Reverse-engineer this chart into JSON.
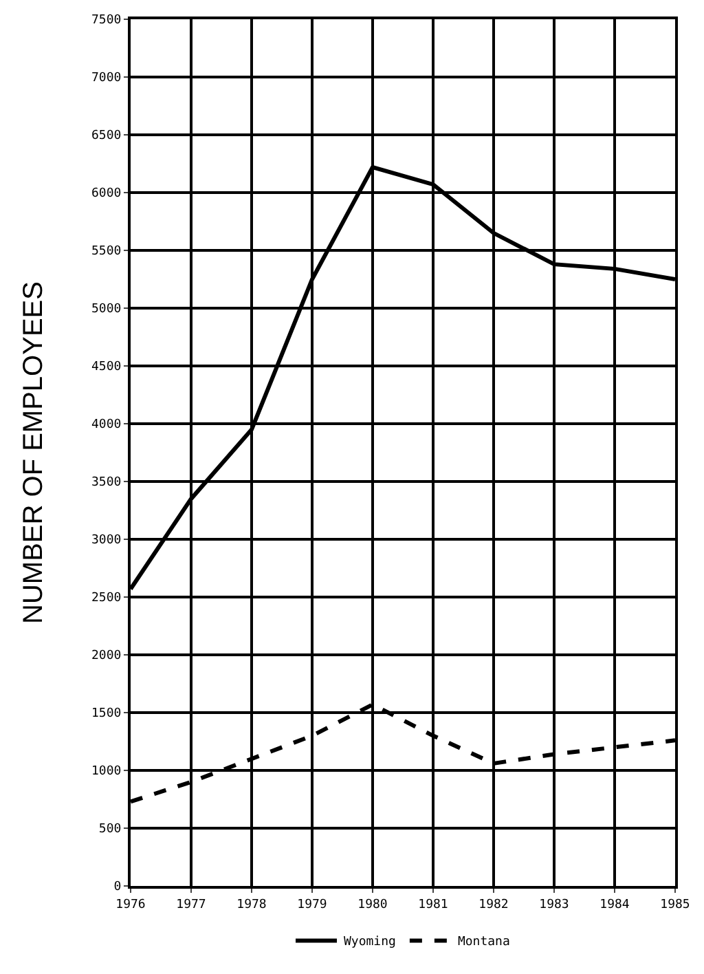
{
  "chart_data": {
    "type": "line",
    "ylabel": "NUMBER OF EMPLOYEES",
    "x": [
      1976,
      1977,
      1978,
      1979,
      1980,
      1981,
      1982,
      1983,
      1984,
      1985
    ],
    "series": [
      {
        "name": "Wyoming",
        "color": "#000000",
        "line_style": "solid",
        "values": [
          2570,
          3350,
          3950,
          5250,
          6220,
          6070,
          5650,
          5380,
          5340,
          5250
        ]
      },
      {
        "name": "Montana",
        "color": "#000000",
        "line_style": "dashed",
        "values": [
          730,
          900,
          1100,
          1300,
          1570,
          1300,
          1060,
          1140,
          1200,
          1260
        ]
      }
    ],
    "xlim": [
      1976,
      1985
    ],
    "xticks": [
      1976,
      1977,
      1978,
      1979,
      1980,
      1981,
      1982,
      1983,
      1984,
      1985
    ],
    "ylim": [
      0,
      7500
    ],
    "yticks": [
      0,
      500,
      1000,
      1500,
      2000,
      2500,
      3000,
      3500,
      4000,
      4500,
      5000,
      5500,
      6000,
      6500,
      7000,
      7500
    ],
    "grid": true,
    "legend": "bottom",
    "marker": "none"
  }
}
